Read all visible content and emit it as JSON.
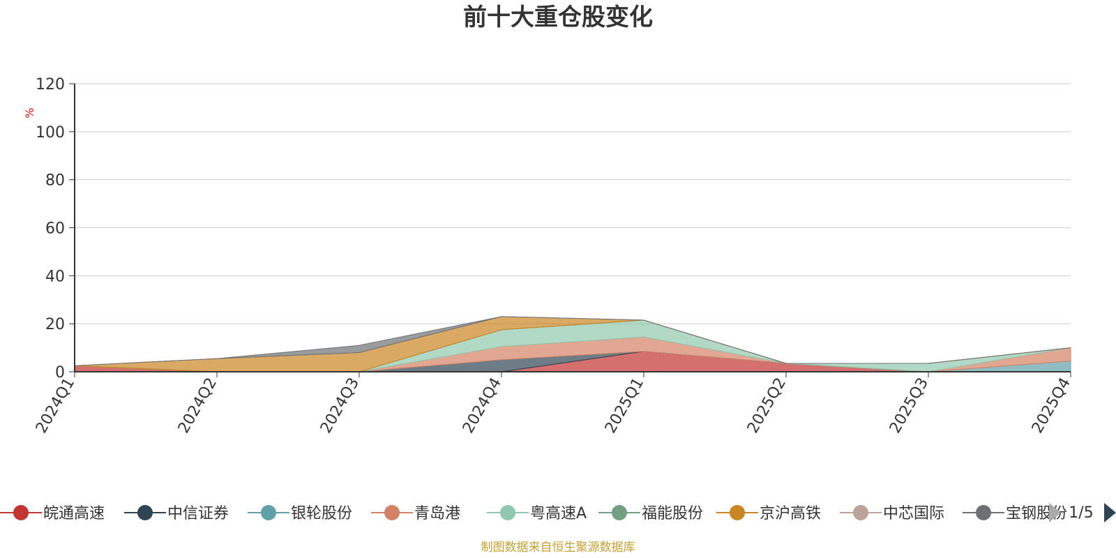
{
  "chart_data": {
    "type": "area",
    "title": "前十大重仓股变化",
    "unit": "%",
    "ylim": [
      0,
      120
    ],
    "yticks": [
      0,
      20,
      40,
      60,
      80,
      100,
      120
    ],
    "categories": [
      "2024Q1",
      "2024Q2",
      "2024Q3",
      "2024Q4",
      "2025Q1",
      "2025Q2",
      "2025Q3",
      "2025Q4"
    ],
    "stacked": true,
    "legend_position": "bottom",
    "legend_page": "1/5",
    "source": "制图数据来自恒生聚源数据库",
    "series": [
      {
        "name": "皖通高速",
        "color": "#c23531",
        "values": [
          2.5,
          0,
          0,
          0,
          8.5,
          3.5,
          0,
          0
        ]
      },
      {
        "name": "中信证券",
        "color": "#2f4554",
        "values": [
          0,
          0,
          0,
          5,
          0,
          0,
          0,
          0
        ]
      },
      {
        "name": "银轮股份",
        "color": "#61a0a8",
        "values": [
          0,
          0,
          0,
          0,
          0,
          0,
          0,
          4.5
        ]
      },
      {
        "name": "青岛港",
        "color": "#d48265",
        "values": [
          0,
          0,
          0,
          5.5,
          6,
          0,
          0,
          5.5
        ]
      },
      {
        "name": "粤高速A",
        "color": "#91c7ae",
        "values": [
          0,
          0,
          0,
          7,
          7,
          0,
          3.5,
          0
        ]
      },
      {
        "name": "福能股份",
        "color": "#749f83",
        "values": [
          0,
          0,
          0,
          0,
          0,
          0,
          0,
          0
        ]
      },
      {
        "name": "京沪高铁",
        "color": "#ca8622",
        "values": [
          0,
          5.5,
          8,
          5.5,
          0,
          0,
          0,
          0
        ]
      },
      {
        "name": "中芯国际",
        "color": "#bda29a",
        "values": [
          0,
          0,
          0,
          0,
          0,
          0,
          0,
          0
        ]
      },
      {
        "name": "宝钢股份",
        "color": "#6e7074",
        "values": [
          0,
          0,
          3,
          0,
          0,
          0,
          0,
          0
        ]
      }
    ],
    "colors": [
      "#c23531",
      "#2f4554",
      "#61a0a8",
      "#d48265",
      "#91c7ae",
      "#749f83",
      "#ca8622",
      "#bda29a",
      "#6e7074",
      "#546570",
      "#c4ccd3",
      "#7f8c8d"
    ]
  }
}
